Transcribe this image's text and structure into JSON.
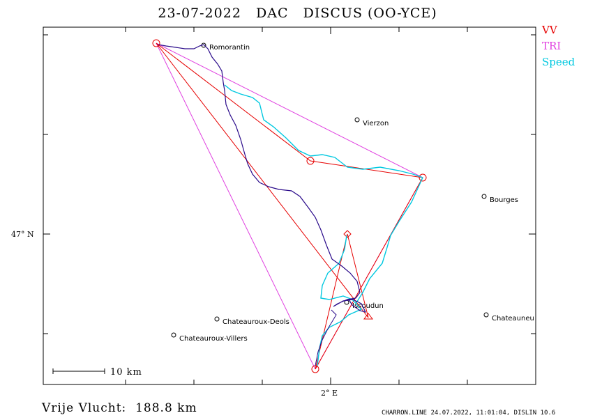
{
  "header": {
    "date": "23-07-2022",
    "club": "DAC",
    "glider": "DISCUS (OO-YCE)"
  },
  "legend": [
    {
      "label": "VV",
      "color": "#e60000"
    },
    {
      "label": "TRI",
      "color": "#e040e0"
    },
    {
      "label": "Speed",
      "color": "#00c8e0"
    }
  ],
  "axes": {
    "lat_label": "47° N",
    "lon_label": "2° E"
  },
  "towns": [
    {
      "name": "Romorantin"
    },
    {
      "name": "Vierzon"
    },
    {
      "name": "Bourges"
    },
    {
      "name": "Issoudun"
    },
    {
      "name": "Chateauroux-Deols"
    },
    {
      "name": "Chateauroux-Villers"
    },
    {
      "name": "Chateauneu"
    }
  ],
  "scale": {
    "label": "10 km"
  },
  "summary": {
    "label": "Vrije Vlucht:",
    "distance": "188.8 km"
  },
  "footer": {
    "text": "CHARRON.LINE 24.07.2022, 11:01:04, DISLIN 10.6"
  },
  "colors": {
    "track": "#2a0a8a",
    "speed": "#00c8e0",
    "vv": "#e60000",
    "tri": "#e040e0"
  }
}
